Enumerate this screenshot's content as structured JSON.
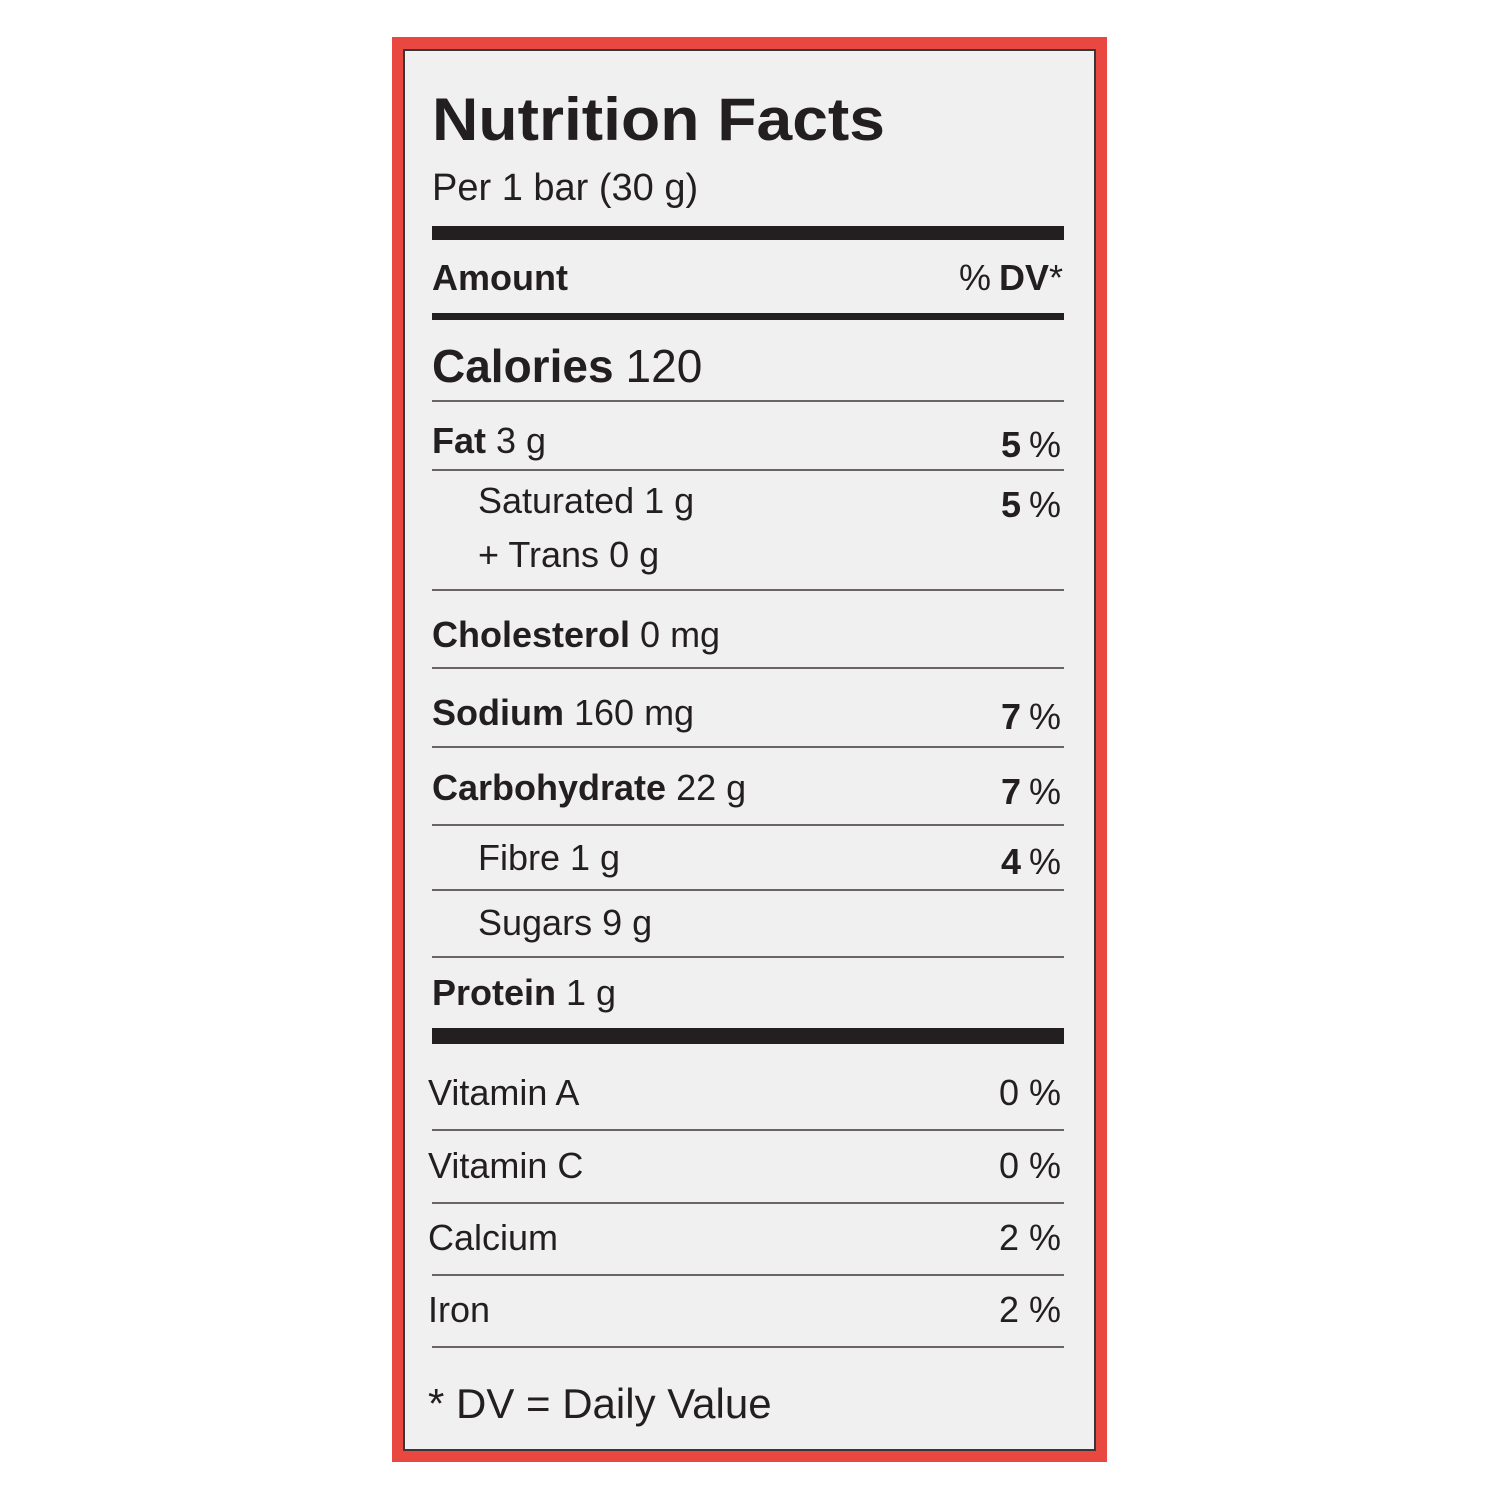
{
  "header": {
    "title": "Nutrition Facts",
    "serving": "Per 1 bar (30 g)"
  },
  "columns": {
    "amount": "Amount",
    "dv_symbol": "%",
    "dv_label": "DV",
    "dv_mark": "*"
  },
  "calories": {
    "label": "Calories",
    "value": "120"
  },
  "nutrients": [
    {
      "name": "Fat",
      "amount": "3 g",
      "dv": "5",
      "dv_unit": "%",
      "bold": true,
      "indent": false
    },
    {
      "name": "Saturated",
      "amount": "1 g",
      "dv": "5",
      "dv_unit": "%",
      "bold": false,
      "indent": true,
      "extra": "+ Trans 0 g"
    },
    {
      "name": "Cholesterol",
      "amount": "0 mg",
      "bold": true,
      "indent": false
    },
    {
      "name": "Sodium",
      "amount": "160 mg",
      "dv": "7",
      "dv_unit": "%",
      "bold": true,
      "indent": false
    },
    {
      "name": "Carbohydrate",
      "amount": "22 g",
      "dv": "7",
      "dv_unit": "%",
      "bold": true,
      "indent": false
    },
    {
      "name": "Fibre",
      "amount": "1 g",
      "dv": "4",
      "dv_unit": "%",
      "bold": false,
      "indent": true
    },
    {
      "name": "Sugars",
      "amount": "9 g",
      "bold": false,
      "indent": true
    },
    {
      "name": "Protein",
      "amount": "1 g",
      "bold": true,
      "indent": false
    }
  ],
  "vitamins": [
    {
      "name": "Vitamin A",
      "dv": "0 %"
    },
    {
      "name": "Vitamin C",
      "dv": "0 %"
    },
    {
      "name": "Calcium",
      "dv": "2 %"
    },
    {
      "name": "Iron",
      "dv": "2 %"
    }
  ],
  "footnote": "* DV = Daily Value"
}
